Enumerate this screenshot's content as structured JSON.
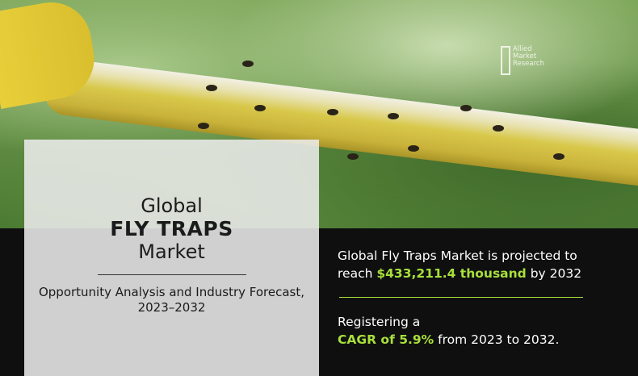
{
  "brand": {
    "logo_text": [
      "Allied",
      "Market",
      "Research"
    ]
  },
  "title": {
    "line1": "Global",
    "line2": "FLY TRAPS",
    "line3": "Market",
    "subtitle": "Opportunity Analysis and Industry Forecast, 2023–2032"
  },
  "projection": {
    "pre": "Global Fly Traps Market is projected to",
    "reach": "reach",
    "value": "$433,211.4 thousand",
    "post": "by 2032"
  },
  "cagr": {
    "pre": "Registering a",
    "value": "CAGR of 5.9%",
    "post": "from 2023 to 2032."
  },
  "colors": {
    "accent": "#a8e03a",
    "dark": "#0f0f10"
  }
}
